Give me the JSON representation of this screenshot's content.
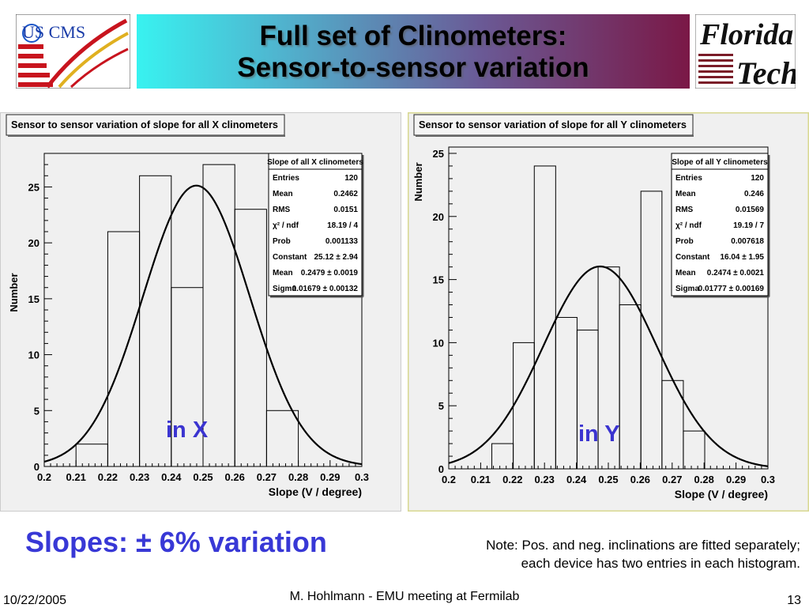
{
  "header": {
    "title_line1": "Full set of Clinometers:",
    "title_line2": "Sensor-to-sensor variation",
    "logo_left_text": "US CMS",
    "logo_right_line1": "Florida",
    "logo_right_line2": "Tech"
  },
  "colors": {
    "title_gradient_start": "#38f2f0",
    "title_gradient_end": "#7a1846",
    "accent_text": "#3838d6",
    "annotation": "#3b34d0",
    "panel_bg": "#f0f0f0"
  },
  "chart_data": [
    {
      "type": "bar",
      "title": "Sensor to sensor variation of slope for all X clinometers",
      "xlabel": "Slope (V / degree)",
      "ylabel": "Number",
      "xlim": [
        0.2,
        0.3
      ],
      "ylim": [
        0,
        28
      ],
      "xticks": [
        "0.2",
        "0.21",
        "0.22",
        "0.23",
        "0.24",
        "0.25",
        "0.26",
        "0.27",
        "0.28",
        "0.29",
        "0.3"
      ],
      "yticks": [
        "0",
        "5",
        "10",
        "15",
        "20",
        "25"
      ],
      "bin_edges": [
        0.21,
        0.22,
        0.23,
        0.24,
        0.25,
        0.26,
        0.27,
        0.28
      ],
      "values": [
        2,
        21,
        26,
        16,
        27,
        23,
        5
      ],
      "fit": {
        "type": "gaussian",
        "constant": 25.12,
        "mean": 0.2479,
        "sigma": 0.01679
      },
      "annotation": "in X",
      "stats": {
        "title": "Slope of all X clinometers",
        "rows": [
          {
            "label": "Entries",
            "value": "120"
          },
          {
            "label": "Mean",
            "value": "0.2462"
          },
          {
            "label": "RMS",
            "value": "0.0151"
          },
          {
            "label": "χ² / ndf",
            "value": "18.19 / 4"
          },
          {
            "label": "Prob",
            "value": "0.001133"
          },
          {
            "label": "Constant",
            "value": "25.12 ± 2.94"
          },
          {
            "label": "Mean",
            "value": "0.2479 ± 0.0019"
          },
          {
            "label": "Sigma",
            "value": "0.01679 ± 0.00132"
          }
        ]
      }
    },
    {
      "type": "bar",
      "title": "Sensor to sensor variation of slope for all Y clinometers",
      "xlabel": "Slope (V / degree)",
      "ylabel": "Number",
      "xlim": [
        0.2,
        0.3
      ],
      "ylim": [
        0,
        25.5
      ],
      "xticks": [
        "0.2",
        "0.21",
        "0.22",
        "0.23",
        "0.24",
        "0.25",
        "0.26",
        "0.27",
        "0.28",
        "0.29",
        "0.3"
      ],
      "yticks": [
        "0",
        "5",
        "10",
        "15",
        "20",
        "25"
      ],
      "bin_edges": [
        0.2135,
        0.2202,
        0.2268,
        0.2335,
        0.2402,
        0.2468,
        0.2535,
        0.2602,
        0.2668,
        0.2735,
        0.2802
      ],
      "values": [
        2,
        10,
        24,
        12,
        11,
        16,
        13,
        22,
        7,
        3
      ],
      "fit": {
        "type": "gaussian",
        "constant": 16.04,
        "mean": 0.2474,
        "sigma": 0.01777
      },
      "annotation": "in Y",
      "stats": {
        "title": "Slope of all Y clinometers",
        "rows": [
          {
            "label": "Entries",
            "value": "120"
          },
          {
            "label": "Mean",
            "value": "0.246"
          },
          {
            "label": "RMS",
            "value": "0.01569"
          },
          {
            "label": "χ² / ndf",
            "value": "19.19 / 7"
          },
          {
            "label": "Prob",
            "value": "0.007618"
          },
          {
            "label": "Constant",
            "value": "16.04 ± 1.95"
          },
          {
            "label": "Mean",
            "value": "0.2474 ± 0.0021"
          },
          {
            "label": "Sigma",
            "value": "0.01777 ± 0.00169"
          }
        ]
      }
    }
  ],
  "summary": "Slopes:  ± 6% variation",
  "note_line1": "Note: Pos. and neg. inclinations are fitted separately;",
  "note_line2": "each device has two entries in each histogram.",
  "footer": {
    "date": "10/22/2005",
    "center": "M. Hohlmann - EMU meeting at Fermilab",
    "page": "13"
  }
}
